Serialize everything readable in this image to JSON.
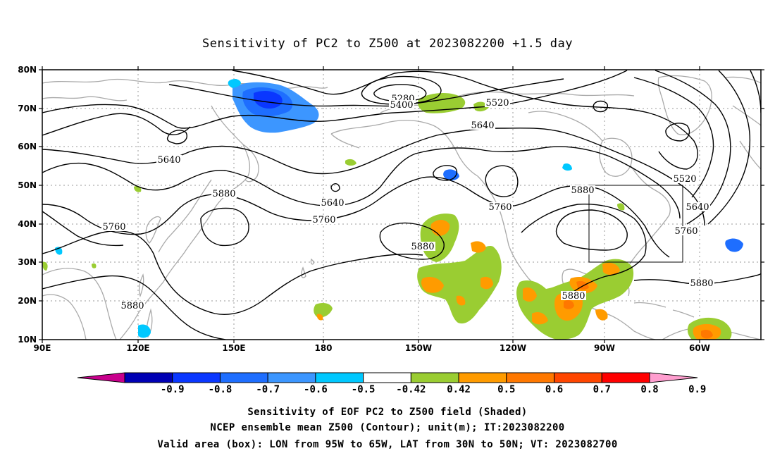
{
  "title": "Sensitivity of PC2 to Z500 at 2023082200 +1.5 day",
  "colors": {
    "contour": "#000000",
    "coast": "#a9a9a9",
    "grid": "#9a9a9a",
    "box": "#000000"
  },
  "map": {
    "lat_ticks": [
      "80N",
      "70N",
      "60N",
      "50N",
      "40N",
      "30N",
      "20N",
      "10N"
    ],
    "lon_ticks": [
      "90E",
      "120E",
      "150E",
      "180",
      "150W",
      "120W",
      "90W",
      "60W"
    ],
    "contour_labels": [
      {
        "text": "5280"
      },
      {
        "text": "5400"
      },
      {
        "text": "5520"
      },
      {
        "text": "5640"
      },
      {
        "text": "5640"
      },
      {
        "text": "5880"
      },
      {
        "text": "5760"
      },
      {
        "text": "5640"
      },
      {
        "text": "5760"
      },
      {
        "text": "5760"
      },
      {
        "text": "5880"
      },
      {
        "text": "5880"
      },
      {
        "text": "5520"
      },
      {
        "text": "5640"
      },
      {
        "text": "5760"
      },
      {
        "text": "5880"
      },
      {
        "text": "5880"
      },
      {
        "text": "5880"
      }
    ]
  },
  "colorbar": {
    "labels": [
      "-0.9",
      "-0.8",
      "-0.7",
      "-0.6",
      "-0.5",
      "-0.42",
      "0.42",
      "0.5",
      "0.6",
      "0.7",
      "0.8",
      "0.9"
    ],
    "colors": [
      "#0000b4",
      "#0a37ff",
      "#1e6eff",
      "#3c96ff",
      "#00c8ff",
      "#ffffff",
      "#9acd32",
      "#ff9b00",
      "#ff7800",
      "#ff4600",
      "#ff0000"
    ],
    "under_color": "#c8008c",
    "over_color": "#ff9ecf"
  },
  "caption": {
    "line1": "Sensitivity of EOF PC2 to Z500 field (Shaded)",
    "line2": "NCEP ensemble mean Z500 (Contour); unit(m); IT:2023082200",
    "line3": "Valid area (box): LON from 95W to 65W, LAT from 30N to 50N; VT: 2023082700"
  }
}
